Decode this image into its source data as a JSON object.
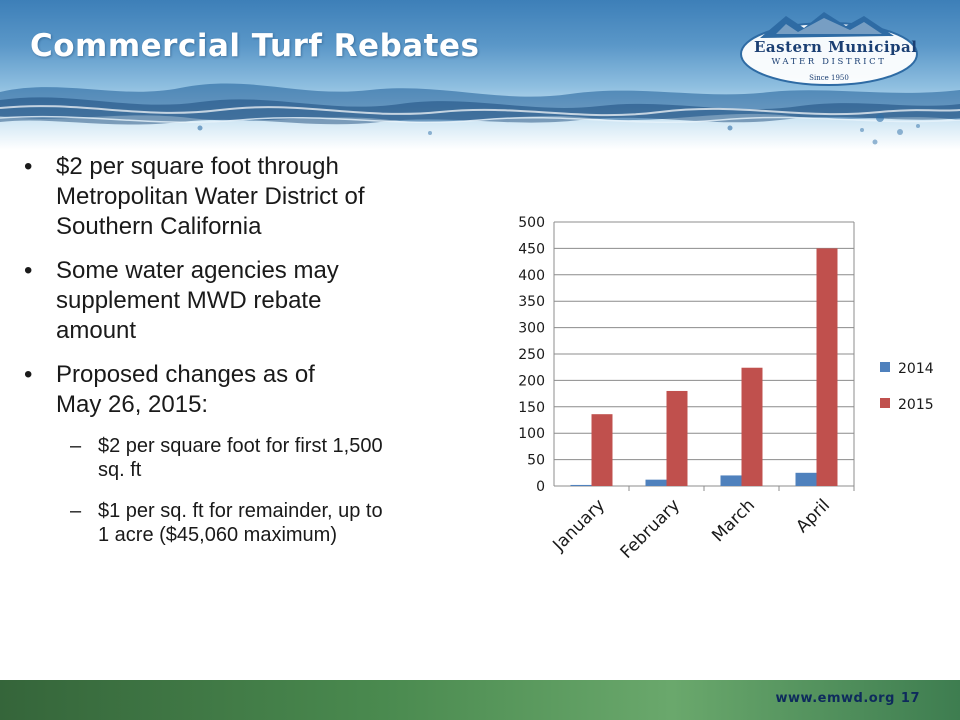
{
  "slide": {
    "title": "Commercial Turf Rebates"
  },
  "logo": {
    "name": "Eastern Municipal",
    "subtitle": "WATER DISTRICT",
    "since": "Since 1950"
  },
  "content": {
    "bullets": [
      {
        "marker": "•",
        "lines": [
          "$2 per square foot through",
          "Metropolitan Water District of",
          "Southern California"
        ]
      },
      {
        "marker": "•",
        "lines": [
          "Some water agencies may",
          "supplement MWD rebate",
          "amount"
        ]
      },
      {
        "marker": "•",
        "lines": [
          "Proposed changes as of",
          "May 26, 2015:"
        ]
      }
    ],
    "sub_bullets": [
      {
        "marker": "–",
        "lines": [
          "$2 per square foot for first 1,500",
          "sq. ft"
        ]
      },
      {
        "marker": "–",
        "lines": [
          "$1 per sq. ft for remainder, up to",
          "1 acre ($45,060 maximum)"
        ]
      }
    ]
  },
  "footer": {
    "url": "www.emwd.org",
    "page": "17"
  },
  "chart_data": {
    "type": "bar",
    "categories": [
      "January",
      "February",
      "March",
      "April"
    ],
    "series": [
      {
        "name": "2014",
        "values": [
          2,
          12,
          20,
          25
        ],
        "color": "#4f81bd"
      },
      {
        "name": "2015",
        "values": [
          136,
          180,
          224,
          450
        ],
        "color": "#c0504d"
      }
    ],
    "ylim": [
      0,
      500
    ],
    "yticks": [
      "0",
      "50",
      "100",
      "150",
      "200",
      "250",
      "300",
      "350",
      "400",
      "450",
      "500"
    ],
    "grid": true,
    "legend_position": "right"
  }
}
